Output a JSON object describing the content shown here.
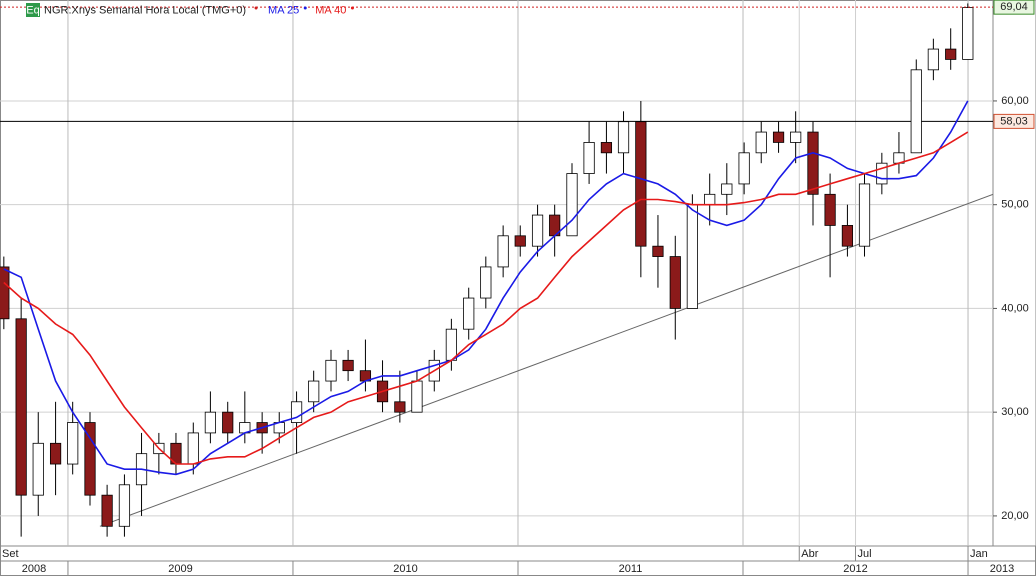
{
  "chart_data": {
    "type": "candlestick",
    "icon": "Eq",
    "title": "NGR:Xnys Semanal Hora Local (TMG+0)",
    "x": [
      2008.715,
      2008.792,
      2008.868,
      2008.945,
      2009.021,
      2009.098,
      2009.174,
      2009.251,
      2009.327,
      2009.404,
      2009.48,
      2009.557,
      2009.633,
      2009.71,
      2009.786,
      2009.863,
      2009.939,
      2010.016,
      2010.092,
      2010.169,
      2010.245,
      2010.322,
      2010.398,
      2010.475,
      2010.551,
      2010.628,
      2010.704,
      2010.781,
      2010.857,
      2010.934,
      2011.01,
      2011.087,
      2011.163,
      2011.24,
      2011.316,
      2011.393,
      2011.469,
      2011.546,
      2011.622,
      2011.699,
      2011.775,
      2011.852,
      2011.928,
      2012.005,
      2012.081,
      2012.158,
      2012.234,
      2012.311,
      2012.387,
      2012.464,
      2012.54,
      2012.617,
      2012.693,
      2012.77,
      2012.846,
      2012.923,
      2012.999
    ],
    "open": [
      44,
      39,
      22,
      27,
      25,
      29,
      22,
      19,
      23,
      26,
      27,
      25,
      28,
      30,
      28,
      29,
      28,
      29,
      31,
      33,
      35,
      34,
      33,
      31,
      30,
      33,
      35,
      38,
      41,
      44,
      47,
      46,
      49,
      47,
      53,
      56,
      55,
      58,
      46,
      45,
      40,
      50,
      51,
      52,
      55,
      57,
      56,
      57,
      51,
      48,
      46,
      52,
      54,
      55,
      63,
      65,
      64
    ],
    "high": [
      45,
      41,
      30,
      31,
      31,
      30,
      23,
      24,
      28,
      28,
      28,
      29,
      32,
      31,
      32,
      30,
      30,
      32,
      34,
      36,
      36,
      37,
      35,
      34,
      34,
      36,
      39,
      42,
      45,
      48,
      48,
      50,
      50,
      54,
      58,
      58,
      59,
      60,
      49,
      47,
      51,
      53,
      54,
      56,
      58,
      58,
      59,
      58,
      53,
      50,
      53,
      55,
      57,
      64,
      66,
      67,
      69.4
    ],
    "low": [
      38,
      18,
      20,
      22,
      24,
      21,
      18,
      18,
      20,
      24,
      24,
      24,
      27,
      27,
      27,
      26,
      27,
      26,
      30,
      32,
      33,
      32,
      30,
      29,
      30,
      32,
      34,
      37,
      40,
      43,
      45,
      45,
      45,
      47,
      52,
      53,
      53,
      43,
      42,
      37,
      40,
      48,
      49,
      51,
      54,
      55,
      54,
      48,
      43,
      45,
      45,
      51,
      53,
      55,
      62,
      63,
      64
    ],
    "close": [
      39,
      22,
      27,
      25,
      29,
      22,
      19,
      23,
      26,
      27,
      25,
      28,
      30,
      28,
      29,
      28,
      29,
      31,
      33,
      35,
      34,
      33,
      31,
      30,
      33,
      35,
      38,
      41,
      44,
      47,
      46,
      49,
      47,
      53,
      56,
      55,
      58,
      46,
      45,
      40,
      50,
      51,
      52,
      55,
      57,
      56,
      57,
      51,
      48,
      46,
      52,
      54,
      55,
      63,
      65,
      64,
      69
    ],
    "up_color": "#ffffff",
    "down_color": "#8b1a1a",
    "series": [
      {
        "name": "MA 25",
        "color": "#1a1ae6",
        "values": [
          43.8,
          43,
          38,
          33,
          30,
          27.5,
          25,
          24.5,
          24.5,
          24.2,
          24,
          24.5,
          26,
          27,
          28,
          28.5,
          29,
          29.5,
          30.5,
          31.5,
          32,
          33,
          33.5,
          33.5,
          34,
          34.5,
          35,
          36,
          38,
          41,
          43.5,
          45.5,
          47,
          48.5,
          50.5,
          52,
          53,
          52.5,
          52,
          51,
          49.5,
          48.5,
          48,
          48.5,
          50,
          52.5,
          54.5,
          55,
          54.5,
          53.5,
          53,
          52.5,
          52.5,
          52.8,
          54.5,
          57,
          60
        ]
      },
      {
        "name": "MA 40",
        "color": "#e61a1a",
        "values": [
          42.5,
          41,
          40,
          38.5,
          37.5,
          35.5,
          33,
          30.5,
          28.5,
          26.5,
          25,
          25,
          25.5,
          25.7,
          25.7,
          26.5,
          27.5,
          28.5,
          29.5,
          30,
          31,
          31.5,
          32,
          32.5,
          33,
          34,
          35,
          36.5,
          37.5,
          38.5,
          40,
          41,
          43,
          45,
          46.5,
          48,
          49.5,
          50.5,
          50.5,
          50.3,
          50,
          50,
          50,
          50.2,
          50.5,
          51,
          51,
          51.5,
          52,
          52.5,
          53,
          53.5,
          54,
          54.5,
          55,
          56,
          57
        ]
      }
    ],
    "trendline": {
      "x": [
        2009.142,
        2013.111
      ],
      "y": [
        19,
        51
      ]
    },
    "level": {
      "value": 58.03,
      "label": "58,03"
    },
    "last": {
      "value": 69.04,
      "label": "69,04"
    },
    "xlim": [
      2008.698,
      2013.111
    ],
    "ylim": [
      17.1,
      69.73
    ],
    "yticks": [
      {
        "value": 20,
        "label": "20,00"
      },
      {
        "value": 30,
        "label": "30,00"
      },
      {
        "value": 40,
        "label": "40,00"
      },
      {
        "value": 50,
        "label": "50,00"
      },
      {
        "value": 60,
        "label": "60,00"
      }
    ],
    "xticks": [
      {
        "value": 2008.667,
        "label": "Set"
      },
      {
        "value": 2012.25,
        "label": "Abr"
      },
      {
        "value": 2012.5,
        "label": "Jul"
      },
      {
        "value": 2013.0,
        "label": "Jan"
      }
    ],
    "year_labels": [
      {
        "value": 2008,
        "label": "2008"
      },
      {
        "value": 2009,
        "label": "2009"
      },
      {
        "value": 2010,
        "label": "2010"
      },
      {
        "value": 2011,
        "label": "2011"
      },
      {
        "value": 2012,
        "label": "2012"
      },
      {
        "value": 2013,
        "label": "2013"
      }
    ],
    "grid": true
  }
}
